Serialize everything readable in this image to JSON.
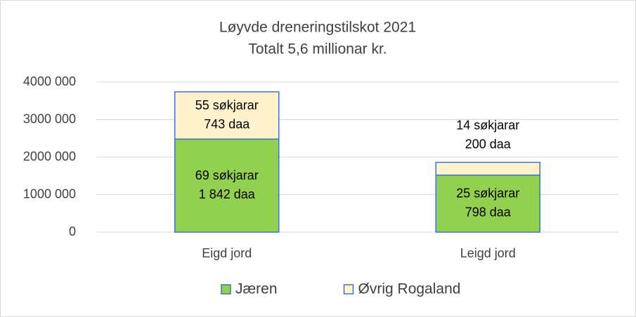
{
  "chart_data": {
    "type": "stacked-bar",
    "title": "Løyvde dreneringstilskot 2021",
    "subtitle": "Totalt 5,6 millionar kr.",
    "categories": [
      "Eigd jord",
      "Leigd jord"
    ],
    "series": [
      {
        "name": "Jæren",
        "color": "#92d050",
        "values": [
          2480000,
          1520000
        ],
        "annotations": [
          [
            "69 søkjarar",
            "1 842 daa"
          ],
          [
            "25 søkjarar",
            "798 daa"
          ]
        ]
      },
      {
        "name": "Øvrig Rogaland",
        "color": "#fff2cc",
        "values": [
          1260000,
          340000
        ],
        "annotations": [
          [
            "55 søkjarar",
            "743 daa"
          ],
          [
            "14 søkjarar",
            "200 daa"
          ]
        ]
      }
    ],
    "ylim": [
      0,
      4000000
    ],
    "yticks": [
      0,
      {
        "value": 1000000,
        "label": "1000 000"
      },
      {
        "value": 2000000,
        "label": "2000 000"
      },
      {
        "value": 3000000,
        "label": "3000 000"
      },
      {
        "value": 4000000,
        "label": "4000 000"
      }
    ],
    "grid": true,
    "legend": "bottom"
  }
}
